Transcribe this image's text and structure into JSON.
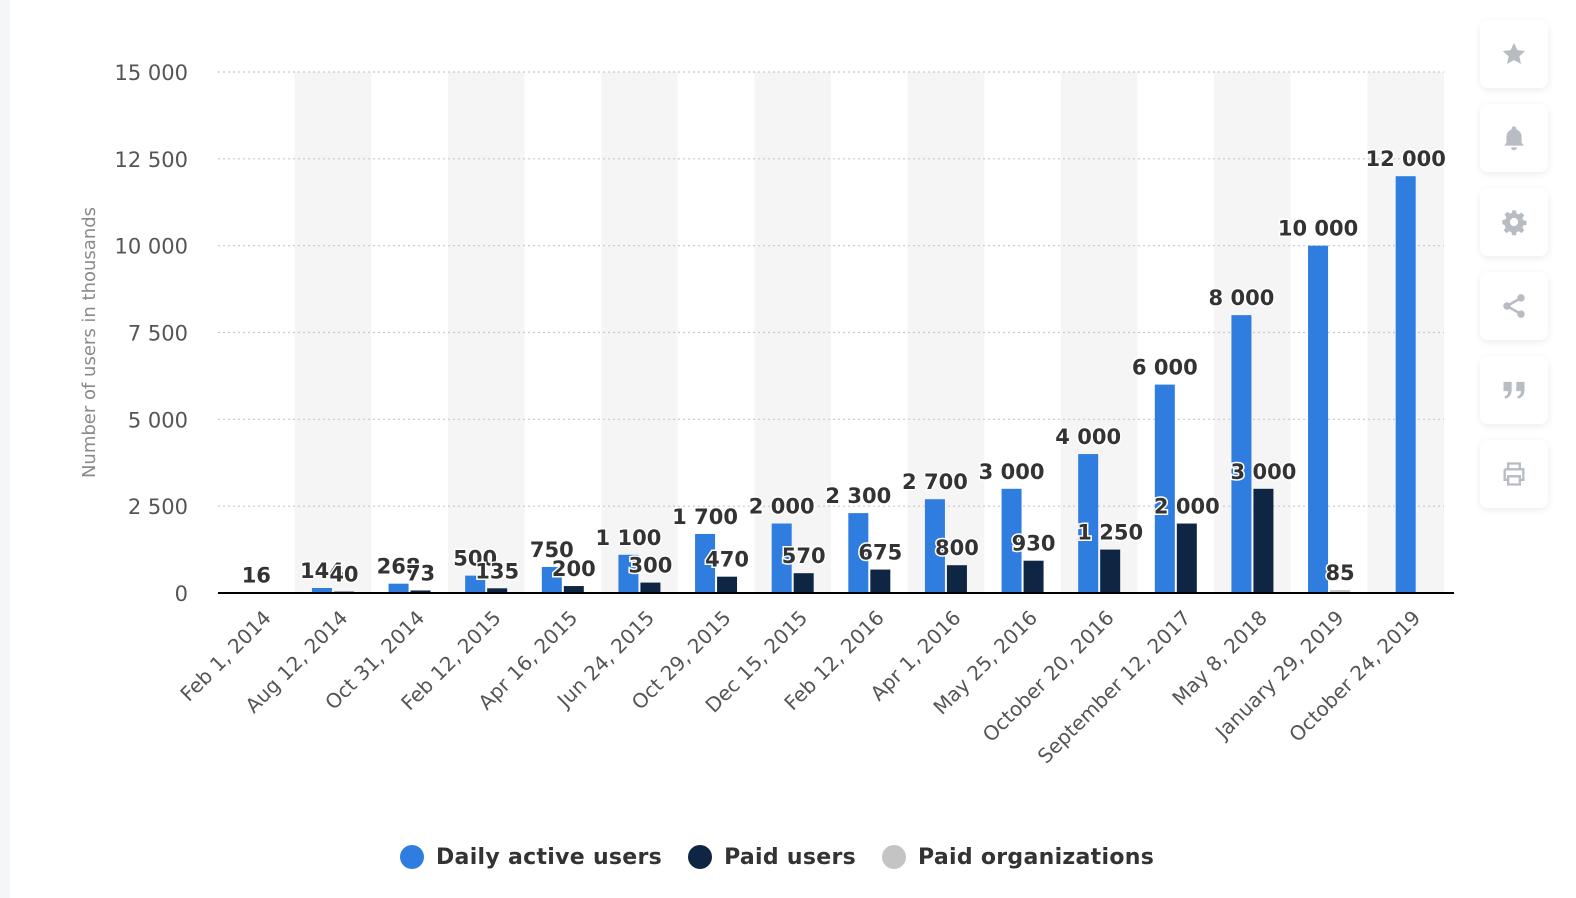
{
  "toolbar": {
    "icons": [
      "star-icon",
      "bell-icon",
      "gear-icon",
      "share-icon",
      "quote-icon",
      "print-icon"
    ]
  },
  "colors": {
    "daily_active": "#2f7ddf",
    "paid_users": "#0e2643",
    "paid_orgs": "#c4c4c4",
    "band": "#f5f5f5",
    "grid": "#c8c8c8",
    "axis": "#000000",
    "text": "#333333",
    "muted": "#666666"
  },
  "chart_data": {
    "type": "bar",
    "ylabel": "Number of users in thousands",
    "ylim": [
      0,
      15000
    ],
    "yticks": [
      0,
      2500,
      5000,
      7500,
      10000,
      12500,
      15000
    ],
    "ytick_labels": [
      "0",
      "2 500",
      "5 000",
      "7 500",
      "10 000",
      "12 500",
      "15 000"
    ],
    "grid": "horizontal dotted",
    "legend_position": "bottom",
    "categories": [
      "Feb 1, 2014",
      "Aug 12, 2014",
      "Oct 31, 2014",
      "Feb 12, 2015",
      "Apr 16, 2015",
      "Jun 24, 2015",
      "Oct 29, 2015",
      "Dec 15, 2015",
      "Feb 12, 2016",
      "Apr 1, 2016",
      "May 25, 2016",
      "October 20, 2016",
      "September 12, 2017",
      "May 8, 2018",
      "January 29, 2019",
      "October 24, 2019"
    ],
    "series": [
      {
        "name": "Daily active users",
        "values": [
          16,
          144,
          268,
          500,
          750,
          1100,
          1700,
          2000,
          2300,
          2700,
          3000,
          4000,
          6000,
          8000,
          10000,
          12000
        ],
        "labels": [
          "16",
          "144",
          "268",
          "500",
          "750",
          "1 100",
          "1 700",
          "2 000",
          "2 300",
          "2 700",
          "3 000",
          "4 000",
          "6 000",
          "8 000",
          "10 000",
          "12 000"
        ]
      },
      {
        "name": "Paid users",
        "values": [
          null,
          40,
          73,
          135,
          200,
          300,
          470,
          570,
          675,
          800,
          930,
          1250,
          2000,
          3000,
          null,
          null
        ],
        "labels": [
          null,
          "40",
          "73",
          "135",
          "200",
          "300",
          "470",
          "570",
          "675",
          "800",
          "930",
          "1 250",
          "2 000",
          "3 000",
          null,
          null
        ]
      },
      {
        "name": "Paid organizations",
        "values": [
          null,
          null,
          null,
          null,
          null,
          null,
          null,
          null,
          null,
          null,
          null,
          null,
          null,
          null,
          85,
          null
        ],
        "labels": [
          null,
          null,
          null,
          null,
          null,
          null,
          null,
          null,
          null,
          null,
          null,
          null,
          null,
          null,
          "85",
          null
        ]
      }
    ]
  }
}
